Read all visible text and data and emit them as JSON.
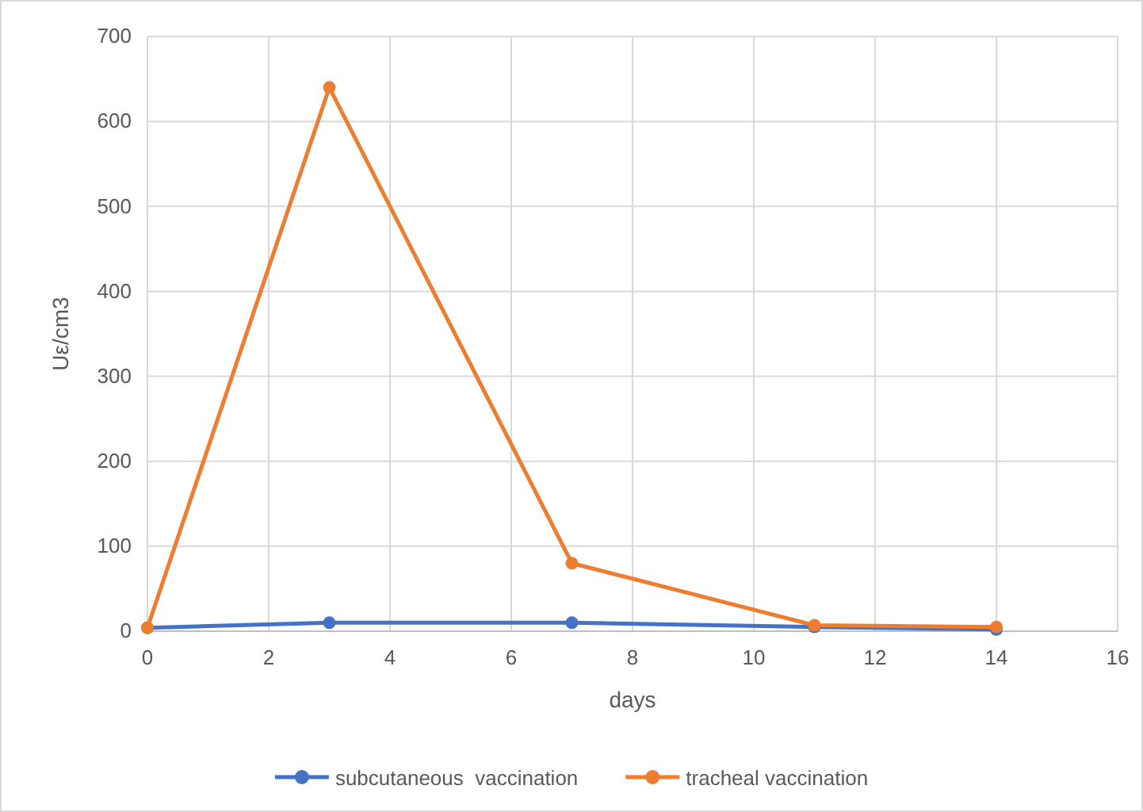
{
  "chart_data": {
    "type": "line",
    "xlabel": "days",
    "ylabel": "Uε/cm3",
    "xlim": [
      0,
      16
    ],
    "xticks": [
      0,
      2,
      4,
      6,
      8,
      10,
      12,
      14,
      16
    ],
    "ylim": [
      0,
      700
    ],
    "yticks": [
      0,
      100,
      200,
      300,
      400,
      500,
      600,
      700
    ],
    "grid": true,
    "legend": "bottom",
    "marker": "circle",
    "line_style": "solid",
    "x": [
      0,
      3,
      7,
      11,
      14
    ],
    "series": [
      {
        "name": "subcutaneous  vaccination",
        "color": "#4472c4",
        "values": [
          4,
          10,
          10,
          5,
          2
        ]
      },
      {
        "name": "tracheal vaccination",
        "color": "#ed7d31",
        "values": [
          4,
          640,
          80,
          7,
          5
        ]
      }
    ]
  }
}
